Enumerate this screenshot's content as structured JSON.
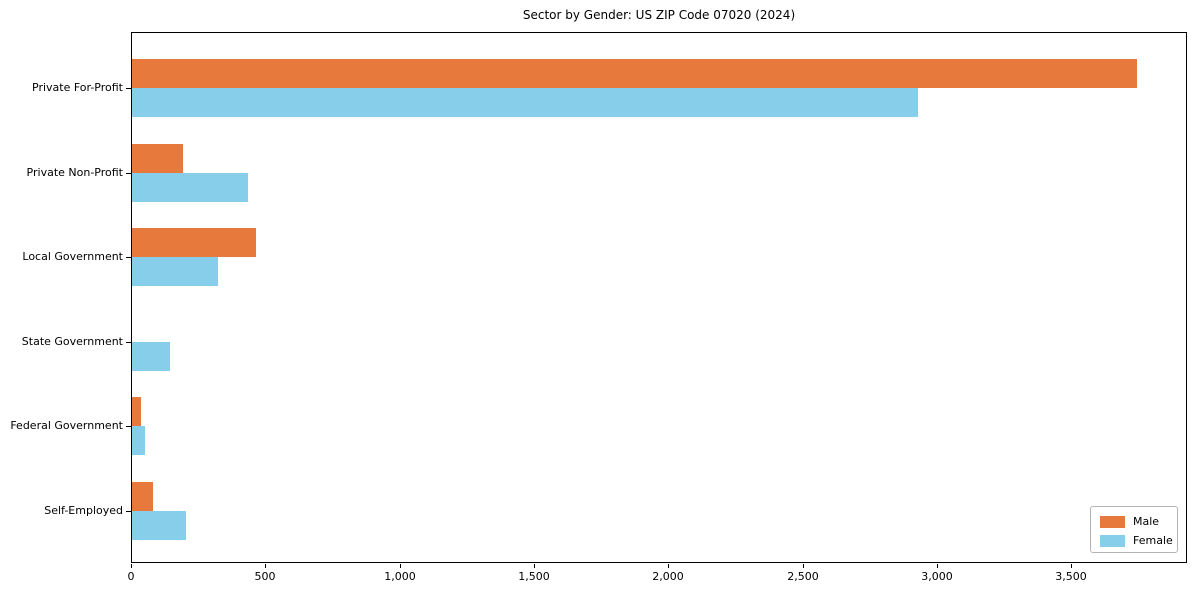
{
  "title": "Sector by Gender: US ZIP Code 07020 (2024)",
  "chart_data": {
    "type": "bar",
    "orientation": "horizontal",
    "title": "Sector by Gender: US ZIP Code 07020 (2024)",
    "categories": [
      "Private For-Profit",
      "Private Non-Profit",
      "Local Government",
      "State Government",
      "Federal Government",
      "Self-Employed"
    ],
    "series": [
      {
        "name": "Male",
        "color": "#e8793d",
        "values": [
          3740,
          190,
          460,
          0,
          35,
          80
        ]
      },
      {
        "name": "Female",
        "color": "#87ceeb",
        "values": [
          2925,
          430,
          320,
          140,
          48,
          200
        ]
      }
    ],
    "xlabel": "",
    "ylabel": "",
    "xlim": [
      0,
      3930
    ],
    "xticks": [
      0,
      500,
      1000,
      1500,
      2000,
      2500,
      3000,
      3500
    ],
    "xtick_labels": [
      "0",
      "500",
      "1,000",
      "1,500",
      "2,000",
      "2,500",
      "3,000",
      "3,500"
    ],
    "grid": false,
    "legend_position": "lower right"
  },
  "legend": {
    "items": [
      {
        "label": "Male",
        "color": "#e8793d"
      },
      {
        "label": "Female",
        "color": "#87ceeb"
      }
    ]
  }
}
